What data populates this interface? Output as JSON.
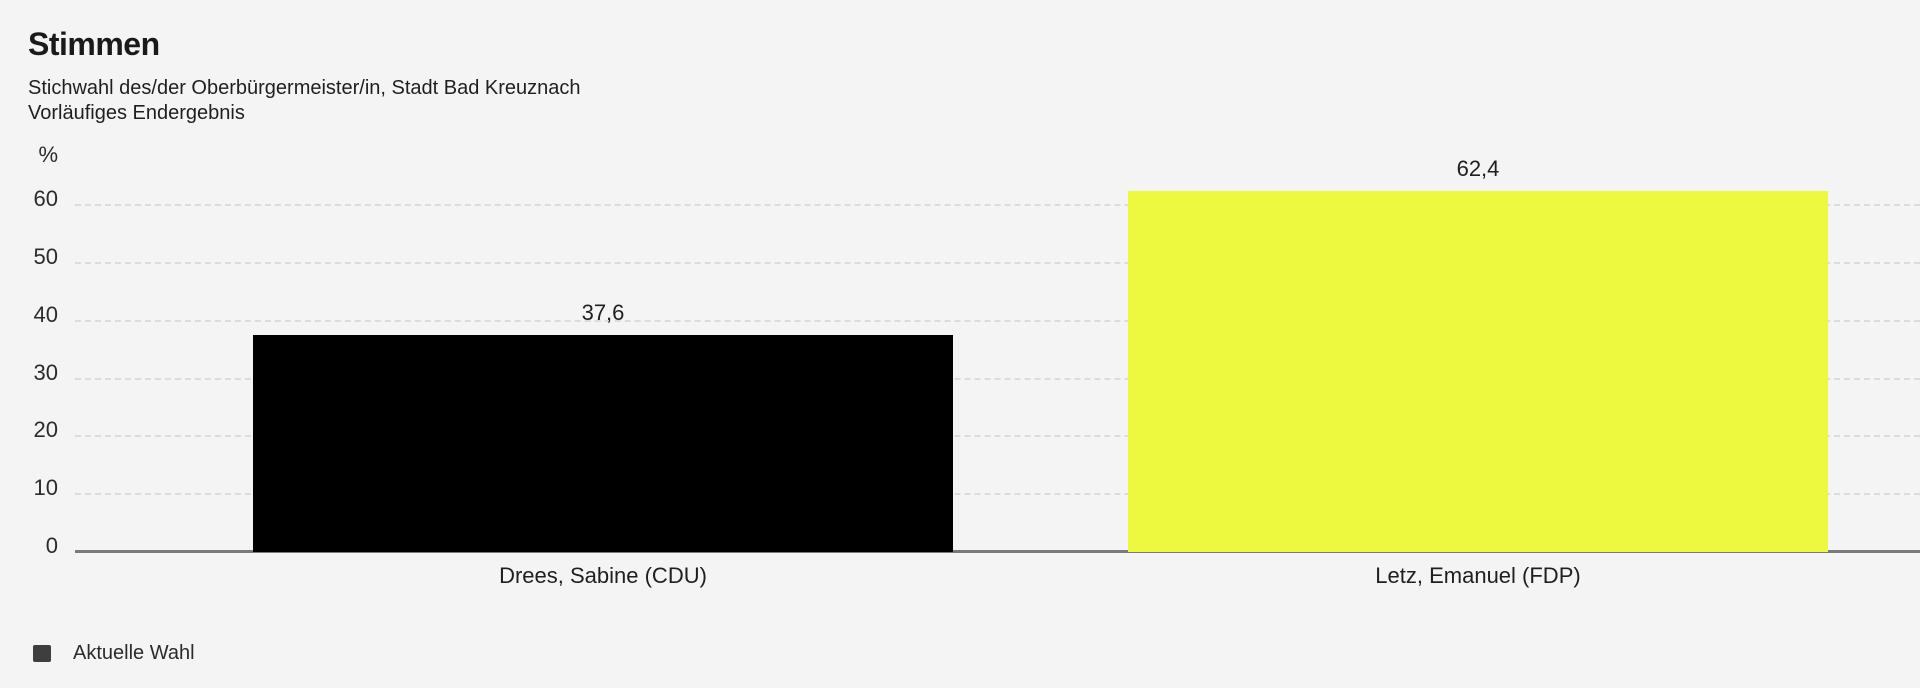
{
  "header": {
    "title": "Stimmen",
    "subtitle_line1": "Stichwahl des/der Oberbürgermeister/in, Stadt Bad Kreuznach",
    "subtitle_line2": "Vorläufiges Endergebnis"
  },
  "chart_data": {
    "type": "bar",
    "title": "Stimmen",
    "categories": [
      "Drees, Sabine (CDU)",
      "Letz, Emanuel (FDP)"
    ],
    "series": [
      {
        "name": "Aktuelle Wahl",
        "values": [
          37.6,
          62.4
        ],
        "value_labels": [
          "37,6",
          "62,4"
        ],
        "colors": [
          "#000000",
          "#edf93e"
        ]
      }
    ],
    "ylabel": "%",
    "yticks": [
      0,
      10,
      20,
      30,
      40,
      50,
      60
    ],
    "ylim": [
      0,
      64
    ],
    "grid": "horizontal-dashed",
    "legend_position": "bottom-left"
  },
  "legend": {
    "items": [
      {
        "label": "Aktuelle Wahl",
        "swatch_color": "#3e3e3e"
      }
    ]
  },
  "colors": {
    "background": "#f4f4f4",
    "gridline": "#dcdcdc",
    "axis_line": "#7a7a7a",
    "bar_black": "#000000",
    "bar_yellow": "#edf93e",
    "text": "#1f1f1f"
  }
}
